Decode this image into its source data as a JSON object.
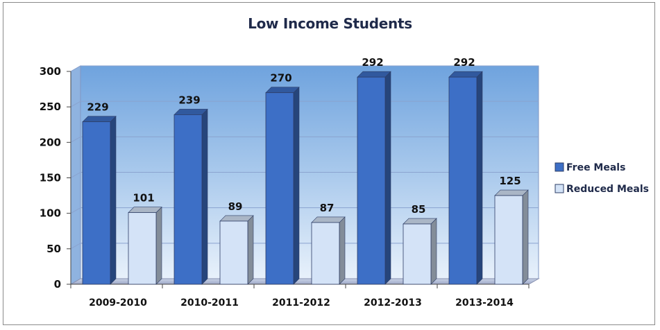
{
  "chart_data": {
    "type": "bar",
    "title": "Low Income Students",
    "categories": [
      "2009-2010",
      "2010-2011",
      "2011-2012",
      "2012-2013",
      "2013-2014"
    ],
    "series": [
      {
        "name": "Free Meals",
        "values": [
          229,
          239,
          270,
          292,
          292
        ],
        "color": "#3d6fc6"
      },
      {
        "name": "Reduced Meals",
        "values": [
          101,
          89,
          87,
          85,
          125
        ],
        "color": "#d4e3f7"
      }
    ],
    "yticks": [
      "0",
      "50",
      "100",
      "150",
      "200",
      "250",
      "300"
    ],
    "ylim": [
      0,
      300
    ],
    "grid": true,
    "legend": "right",
    "xlabel": "",
    "ylabel": ""
  }
}
